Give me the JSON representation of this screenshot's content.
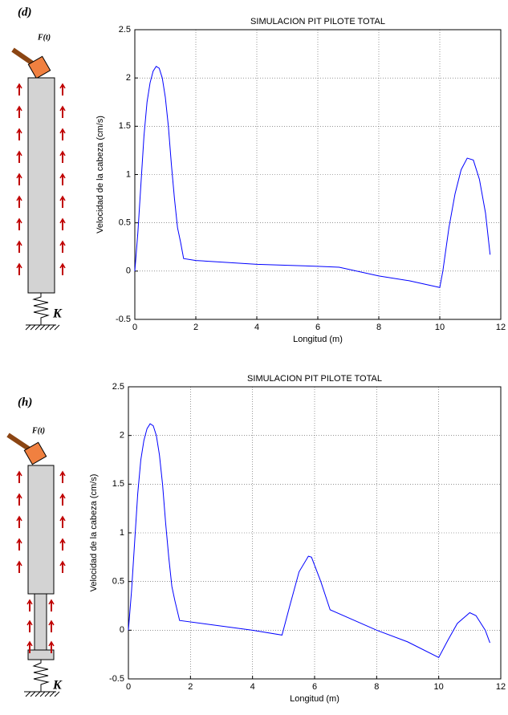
{
  "chart_data": [
    {
      "type": "line",
      "title": "SIMULACION PIT PILOTE TOTAL",
      "x_label": "Longitud (m)",
      "y_label": "Velocidad de la cabeza (cm/s)",
      "x": [
        0,
        0.1,
        0.2,
        0.3,
        0.4,
        0.5,
        0.6,
        0.7,
        0.8,
        0.9,
        1.0,
        1.1,
        1.2,
        1.3,
        1.4,
        1.5,
        1.6,
        2,
        4,
        6,
        6.7,
        8,
        9,
        10,
        10.1,
        10.3,
        10.5,
        10.7,
        10.9,
        11.1,
        11.3,
        11.5,
        11.65
      ],
      "series": [
        {
          "color": "#0000ff",
          "values": [
            0,
            0.4,
            0.9,
            1.4,
            1.75,
            1.95,
            2.07,
            2.12,
            2.1,
            2.0,
            1.8,
            1.5,
            1.1,
            0.75,
            0.45,
            0.3,
            0.13,
            0.11,
            0.07,
            0.05,
            0.04,
            -0.05,
            -0.1,
            -0.17,
            0.0,
            0.45,
            0.8,
            1.05,
            1.17,
            1.15,
            0.95,
            0.6,
            0.17
          ]
        }
      ],
      "xlim": [
        0,
        12
      ],
      "xticks": [
        0,
        2,
        4,
        6,
        8,
        10,
        12
      ],
      "ylim": [
        -0.5,
        2.5
      ],
      "yticks": [
        -0.5,
        0,
        0.5,
        1,
        1.5,
        2,
        2.5
      ],
      "grid": true
    },
    {
      "type": "line",
      "title": "SIMULACION PIT PILOTE TOTAL",
      "x_label": "Longitud (m)",
      "y_label": "Velocidad de la cabeza (cm/s)",
      "x": [
        0,
        0.1,
        0.2,
        0.3,
        0.4,
        0.5,
        0.6,
        0.7,
        0.8,
        0.9,
        1.0,
        1.1,
        1.2,
        1.3,
        1.4,
        1.5,
        1.65,
        4,
        4.95,
        5.2,
        5.5,
        5.8,
        5.9,
        6.2,
        6.5,
        8,
        9,
        10,
        10.3,
        10.6,
        11,
        11.2,
        11.5,
        11.65
      ],
      "series": [
        {
          "color": "#0000ff",
          "values": [
            0,
            0.4,
            0.9,
            1.4,
            1.75,
            1.95,
            2.07,
            2.12,
            2.1,
            2.0,
            1.8,
            1.5,
            1.1,
            0.75,
            0.45,
            0.3,
            0.1,
            0.0,
            -0.05,
            0.25,
            0.6,
            0.76,
            0.75,
            0.5,
            0.21,
            0.0,
            -0.12,
            -0.28,
            -0.1,
            0.07,
            0.18,
            0.15,
            0.0,
            -0.13
          ]
        }
      ],
      "xlim": [
        0,
        12
      ],
      "xticks": [
        0,
        2,
        4,
        6,
        8,
        10,
        12
      ],
      "ylim": [
        -0.5,
        2.5
      ],
      "yticks": [
        -0.5,
        0,
        0.5,
        1,
        1.5,
        2,
        2.5
      ],
      "grid": true
    }
  ],
  "diagrams": [
    {
      "label": "(d)",
      "force": "F(t)",
      "spring": "K"
    },
    {
      "label": "(h)",
      "force": "F(t)",
      "spring": "K"
    }
  ]
}
